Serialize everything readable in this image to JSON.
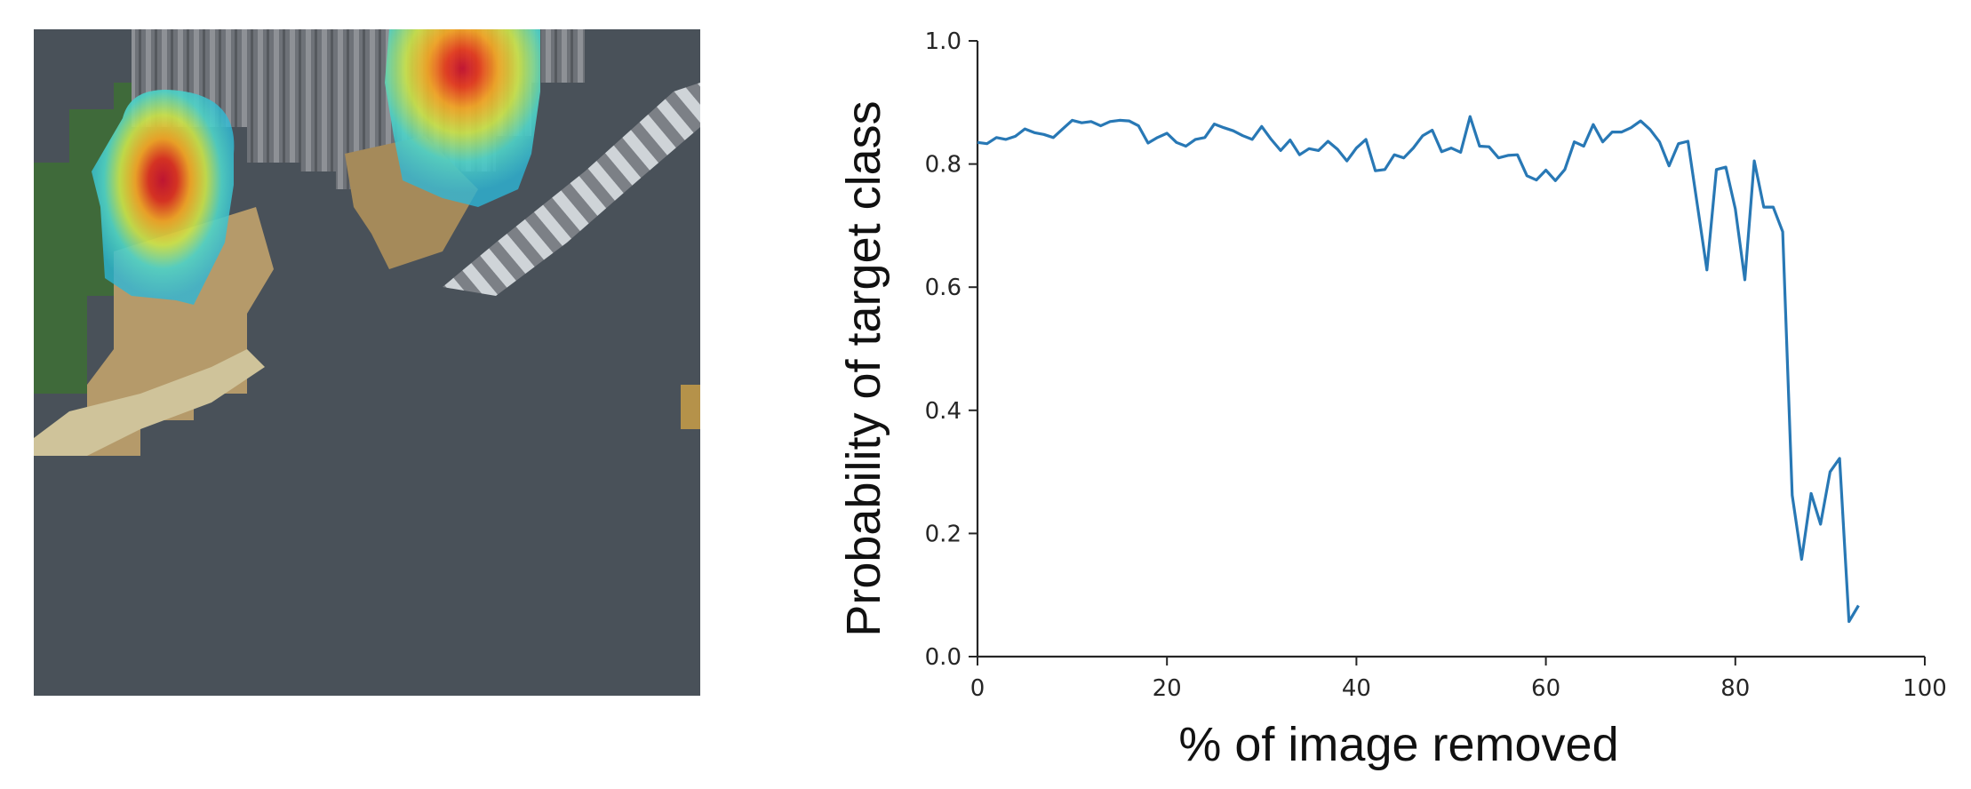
{
  "image_panel": {
    "description_icon": "masked-image-with-saliency-heatmap",
    "background_mask_color": "#495159"
  },
  "chart_data": {
    "type": "line",
    "title": "",
    "xlabel": "% of image removed",
    "ylabel": "Probability of target class",
    "xlim": [
      0,
      100
    ],
    "ylim": [
      0.0,
      1.0
    ],
    "x_ticks": [
      "0",
      "20",
      "40",
      "60",
      "80",
      "100"
    ],
    "y_ticks": [
      "0.0",
      "0.2",
      "0.4",
      "0.6",
      "0.8",
      "1.0"
    ],
    "grid": false,
    "legend": "none",
    "series": [
      {
        "color": "#2878b5",
        "x": [
          0,
          1,
          2,
          3,
          4,
          5,
          6,
          7,
          8,
          9,
          10,
          11,
          12,
          13,
          14,
          15,
          16,
          17,
          18,
          19,
          20,
          21,
          22,
          23,
          24,
          25,
          26,
          27,
          28,
          29,
          30,
          31,
          32,
          33,
          34,
          35,
          36,
          37,
          38,
          39,
          40,
          41,
          42,
          43,
          44,
          45,
          46,
          47,
          48,
          49,
          50,
          51,
          52,
          53,
          54,
          55,
          56,
          57,
          58,
          59,
          60,
          61,
          62,
          63,
          64,
          65,
          66,
          67,
          68,
          69,
          70,
          71,
          72,
          73,
          74,
          75,
          76,
          77,
          78,
          79,
          80,
          81,
          82,
          83,
          84,
          85,
          86,
          87,
          88,
          89,
          90,
          91,
          92,
          93
        ],
        "values": [
          0.835,
          0.833,
          0.843,
          0.84,
          0.845,
          0.857,
          0.851,
          0.848,
          0.843,
          0.857,
          0.871,
          0.867,
          0.869,
          0.862,
          0.869,
          0.871,
          0.87,
          0.862,
          0.834,
          0.843,
          0.85,
          0.835,
          0.829,
          0.84,
          0.843,
          0.865,
          0.859,
          0.854,
          0.846,
          0.84,
          0.861,
          0.84,
          0.822,
          0.839,
          0.815,
          0.825,
          0.822,
          0.837,
          0.824,
          0.805,
          0.826,
          0.84,
          0.789,
          0.791,
          0.815,
          0.81,
          0.826,
          0.846,
          0.855,
          0.82,
          0.826,
          0.819,
          0.877,
          0.829,
          0.828,
          0.81,
          0.814,
          0.815,
          0.781,
          0.774,
          0.79,
          0.773,
          0.791,
          0.836,
          0.829,
          0.864,
          0.836,
          0.852,
          0.852,
          0.859,
          0.87,
          0.856,
          0.836,
          0.797,
          0.833,
          0.837,
          0.732,
          0.628,
          0.791,
          0.795,
          0.727,
          0.612,
          0.805,
          0.73,
          0.73,
          0.69,
          0.262,
          0.158,
          0.265,
          0.215,
          0.3,
          0.322,
          0.057,
          0.083
        ]
      }
    ]
  }
}
